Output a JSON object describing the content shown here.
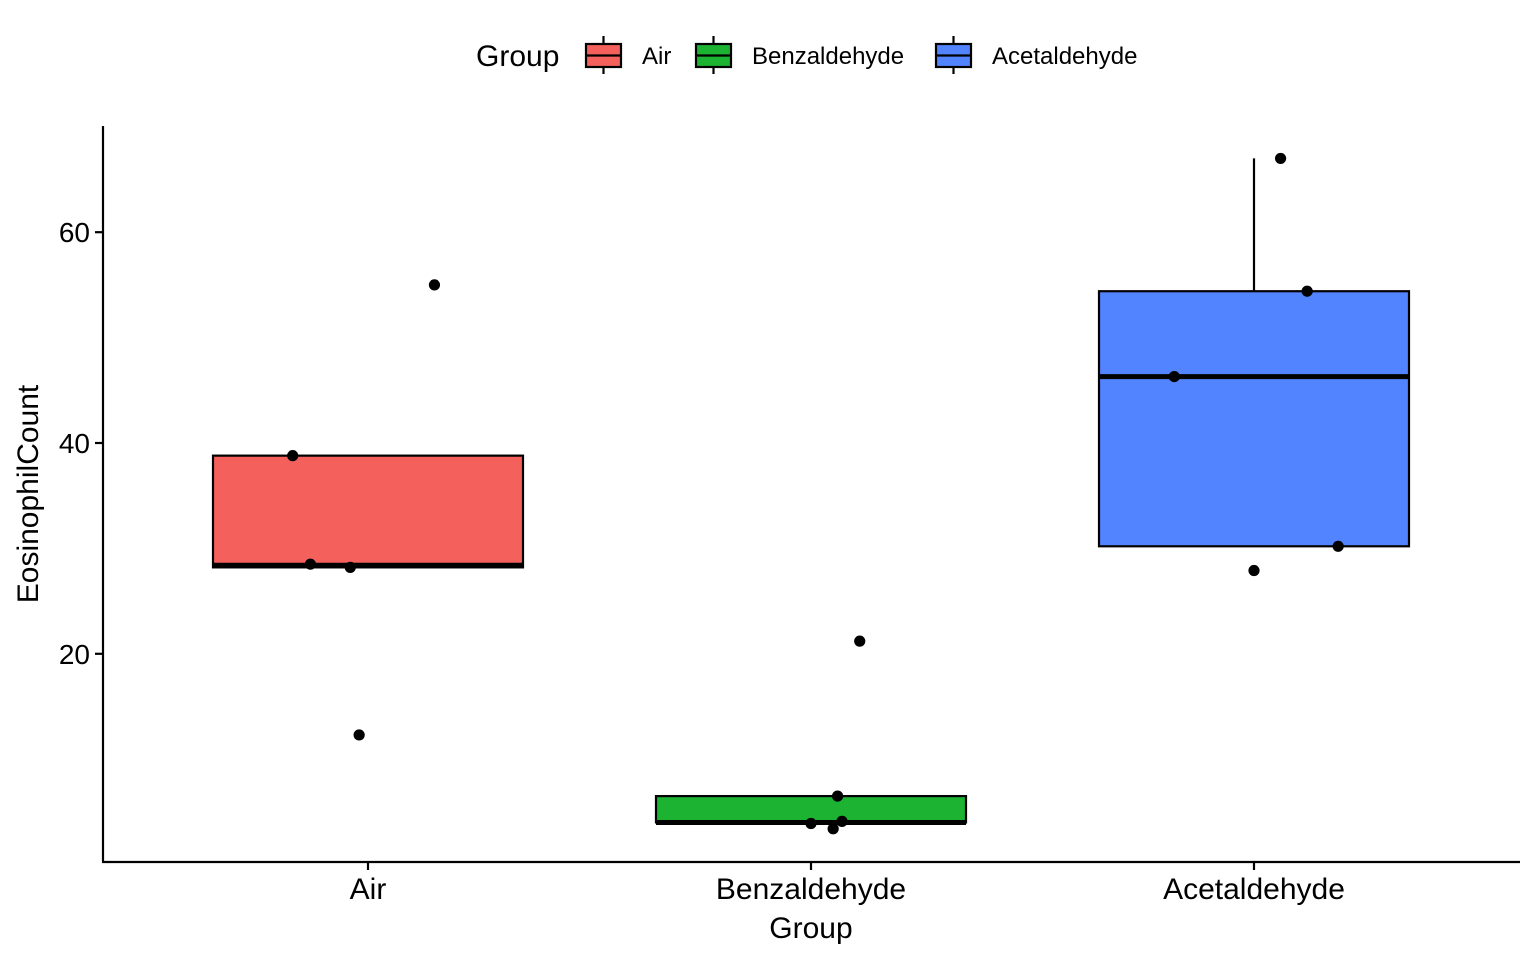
{
  "chart_data": {
    "type": "box",
    "xlabel": "Group",
    "ylabel": "EosinophilCount",
    "ylim": [
      0,
      70
    ],
    "yticks": [
      20,
      40,
      60
    ],
    "grid": false,
    "legend": {
      "title": "Group",
      "position": "top",
      "entries": [
        "Air",
        "Benzaldehyde",
        "Acetaldehyde"
      ]
    },
    "categories": [
      "Air",
      "Benzaldehyde",
      "Acetaldehyde"
    ],
    "series": [
      {
        "name": "Air",
        "color": "#F4615C",
        "q1": 28.2,
        "median": 28.4,
        "q3": 38.8,
        "whisker_low": 28.2,
        "whisker_high": 38.8,
        "points": [
          {
            "jitter": -0.17,
            "y": 38.8
          },
          {
            "jitter": -0.13,
            "y": 28.5
          },
          {
            "jitter": -0.04,
            "y": 28.2
          },
          {
            "jitter": -0.02,
            "y": 12.3
          },
          {
            "jitter": 0.15,
            "y": 55.0
          }
        ]
      },
      {
        "name": "Benzaldehyde",
        "color": "#1CB232",
        "q1": 4.0,
        "median": 4.0,
        "q3": 6.5,
        "whisker_low": 4.0,
        "whisker_high": 6.5,
        "points": [
          {
            "jitter": 0.0,
            "y": 3.9
          },
          {
            "jitter": 0.06,
            "y": 6.5
          },
          {
            "jitter": 0.05,
            "y": 3.4
          },
          {
            "jitter": 0.07,
            "y": 4.1
          },
          {
            "jitter": 0.11,
            "y": 21.2
          }
        ]
      },
      {
        "name": "Acetaldehyde",
        "color": "#5384FF",
        "q1": 30.2,
        "median": 46.3,
        "q3": 54.4,
        "whisker_low": 30.2,
        "whisker_high": 67.0,
        "points": [
          {
            "jitter": -0.18,
            "y": 46.3
          },
          {
            "jitter": 0.0,
            "y": 27.9
          },
          {
            "jitter": 0.06,
            "y": 67.0
          },
          {
            "jitter": 0.12,
            "y": 54.4
          },
          {
            "jitter": 0.19,
            "y": 30.2
          }
        ]
      }
    ]
  }
}
